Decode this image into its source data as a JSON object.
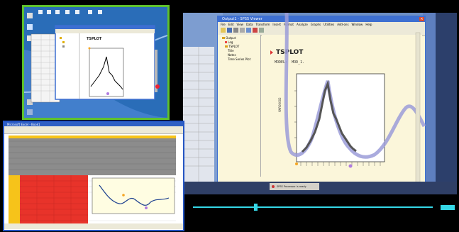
{
  "top_left": {
    "chart_title": "TSPLOT",
    "colors": {
      "frame": "#5ec02d",
      "desktop": "#2a6db8",
      "chart_line": "#000000",
      "marker_orange": "#f5a623",
      "marker_purple": "#b07be0"
    }
  },
  "main_window": {
    "title": "Output1 - SPSS Viewer",
    "menu": [
      "File",
      "Edit",
      "View",
      "Data",
      "Transform",
      "Insert",
      "Format",
      "Analyze",
      "Graphs",
      "Utilities",
      "Add-ons",
      "Window",
      "Help"
    ],
    "tree": [
      "Output",
      "Log",
      "TSPLOT",
      "Title",
      "Notes",
      "Time Series Plot"
    ],
    "chart_title": "TSPLOT",
    "model_label": "MODEL:",
    "model_value": "MOD_1.",
    "y_axis_label": "VAR00002",
    "taskbar_item": "SPSS Processor is ready",
    "colors": {
      "viewer_bg": "#fbf6da",
      "chart_line": "#555555",
      "ghost_line": "#9b9cd8",
      "titlebar": "#3d6fd1"
    }
  },
  "excel": {
    "title": "Microsoft Excel - Book1",
    "colors": {
      "grid_gray": "#8c8c8c",
      "red_block": "#e8332a",
      "yellow": "#f6c31a",
      "chart_line": "#1c3f8f"
    }
  },
  "video_controls": {
    "progress": 0.26,
    "colors": {
      "track": "#35d7e6"
    }
  }
}
